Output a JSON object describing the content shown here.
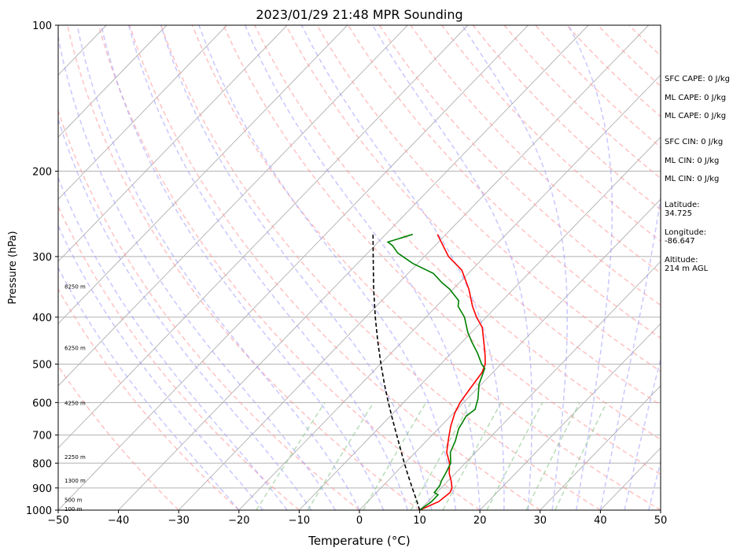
{
  "chart_data": {
    "type": "line",
    "title": "2023/01/29 21:48 MPR Sounding",
    "xlabel": "Temperature (°C)",
    "ylabel": "Pressure (hPa)",
    "xlim": [
      -50,
      50
    ],
    "ylim": [
      1000,
      100
    ],
    "y_scale": "log",
    "x_ticks": [
      "−50",
      "−40",
      "−30",
      "−20",
      "−10",
      "0",
      "10",
      "20",
      "30",
      "40",
      "50"
    ],
    "y_ticks": [
      "100",
      "200",
      "300",
      "400",
      "500",
      "600",
      "700",
      "800",
      "900",
      "1000"
    ],
    "height_labels": [
      {
        "label": "100 m",
        "p": 993
      },
      {
        "label": "500 m",
        "p": 950
      },
      {
        "label": "1300 m",
        "p": 867
      },
      {
        "label": "2250 m",
        "p": 776
      },
      {
        "label": "4250 m",
        "p": 600
      },
      {
        "label": "6250 m",
        "p": 462
      },
      {
        "label": "8250 m",
        "p": 345
      }
    ],
    "series": [
      {
        "role": "temperature",
        "color": "#ff0000",
        "points": [
          [
            10,
            1000
          ],
          [
            11.8,
            960
          ],
          [
            12.2,
            920
          ],
          [
            11.8,
            900
          ],
          [
            10.5,
            870
          ],
          [
            9,
            840
          ],
          [
            7.4,
            800
          ],
          [
            5.2,
            760
          ],
          [
            3.2,
            710
          ],
          [
            1.6,
            670
          ],
          [
            0.2,
            630
          ],
          [
            -0.6,
            600
          ],
          [
            -1.2,
            560
          ],
          [
            -1.8,
            520
          ],
          [
            -2.6,
            500
          ],
          [
            -4,
            480
          ],
          [
            -6.4,
            450
          ],
          [
            -9,
            420
          ],
          [
            -11.6,
            400
          ],
          [
            -14,
            380
          ],
          [
            -17.4,
            350
          ],
          [
            -21.6,
            320
          ],
          [
            -26,
            300
          ],
          [
            -31.4,
            270
          ]
        ]
      },
      {
        "role": "dewpoint",
        "color": "#008000",
        "points": [
          [
            10,
            1000
          ],
          [
            10.6,
            960
          ],
          [
            10.6,
            930
          ],
          [
            9.6,
            920
          ],
          [
            9.4,
            890
          ],
          [
            8.9,
            870
          ],
          [
            8.4,
            840
          ],
          [
            7.6,
            800
          ],
          [
            5.8,
            760
          ],
          [
            4.8,
            720
          ],
          [
            3.4,
            680
          ],
          [
            2.6,
            640
          ],
          [
            3,
            620
          ],
          [
            1.8,
            590
          ],
          [
            -0.4,
            550
          ],
          [
            -2,
            510
          ],
          [
            -3.2,
            500
          ],
          [
            -5.6,
            475
          ],
          [
            -8.4,
            450
          ],
          [
            -10.6,
            430
          ],
          [
            -13.6,
            400
          ],
          [
            -16.4,
            380
          ],
          [
            -17.2,
            370
          ],
          [
            -20.6,
            350
          ],
          [
            -22.8,
            340
          ],
          [
            -25.8,
            325
          ],
          [
            -30.8,
            310
          ],
          [
            -35,
            295
          ],
          [
            -37,
            285
          ],
          [
            -38.4,
            280
          ],
          [
            -35.5,
            270
          ]
        ]
      },
      {
        "role": "parcel",
        "color": "#000000",
        "points": [
          [
            10,
            1000
          ],
          [
            7.7,
            950
          ],
          [
            5.2,
            900
          ],
          [
            2.6,
            850
          ],
          [
            -0.1,
            800
          ],
          [
            -2.9,
            750
          ],
          [
            -5.9,
            700
          ],
          [
            -9.1,
            650
          ],
          [
            -12.5,
            600
          ],
          [
            -16.1,
            550
          ],
          [
            -19.9,
            500
          ],
          [
            -24,
            450
          ],
          [
            -28.4,
            400
          ],
          [
            -33.2,
            350
          ],
          [
            -38.5,
            300
          ],
          [
            -42.1,
            270
          ]
        ]
      }
    ],
    "grid": true,
    "background_lines": [
      "isobars",
      "isotherms (skewed)",
      "dry adiabats",
      "moist adiabats",
      "mixing ratio lines"
    ],
    "colors": {
      "isotherm": "#b0b0b0",
      "dry_adiabat": "#ff9a9a",
      "moist_adiabat": "#9a9aff",
      "mixing_ratio": "#88c488",
      "height_label": "#000000"
    }
  },
  "sidebar": {
    "sfc_cape": "SFC CAPE: 0 J/kg",
    "ml_cape_1": "ML CAPE: 0 J/kg",
    "ml_cape_2": "ML CAPE: 0 J/kg",
    "sfc_cin": "SFC CIN: 0 J/kg",
    "ml_cin_1": "ML CIN: 0 J/kg",
    "ml_cin_2": "ML CIN: 0 J/kg",
    "latitude_label": "Latitude:",
    "latitude_value": "34.725",
    "longitude_label": "Longitude:",
    "longitude_value": "-86.647",
    "altitude_label": "Altitude:",
    "altitude_value": "214 m AGL"
  }
}
